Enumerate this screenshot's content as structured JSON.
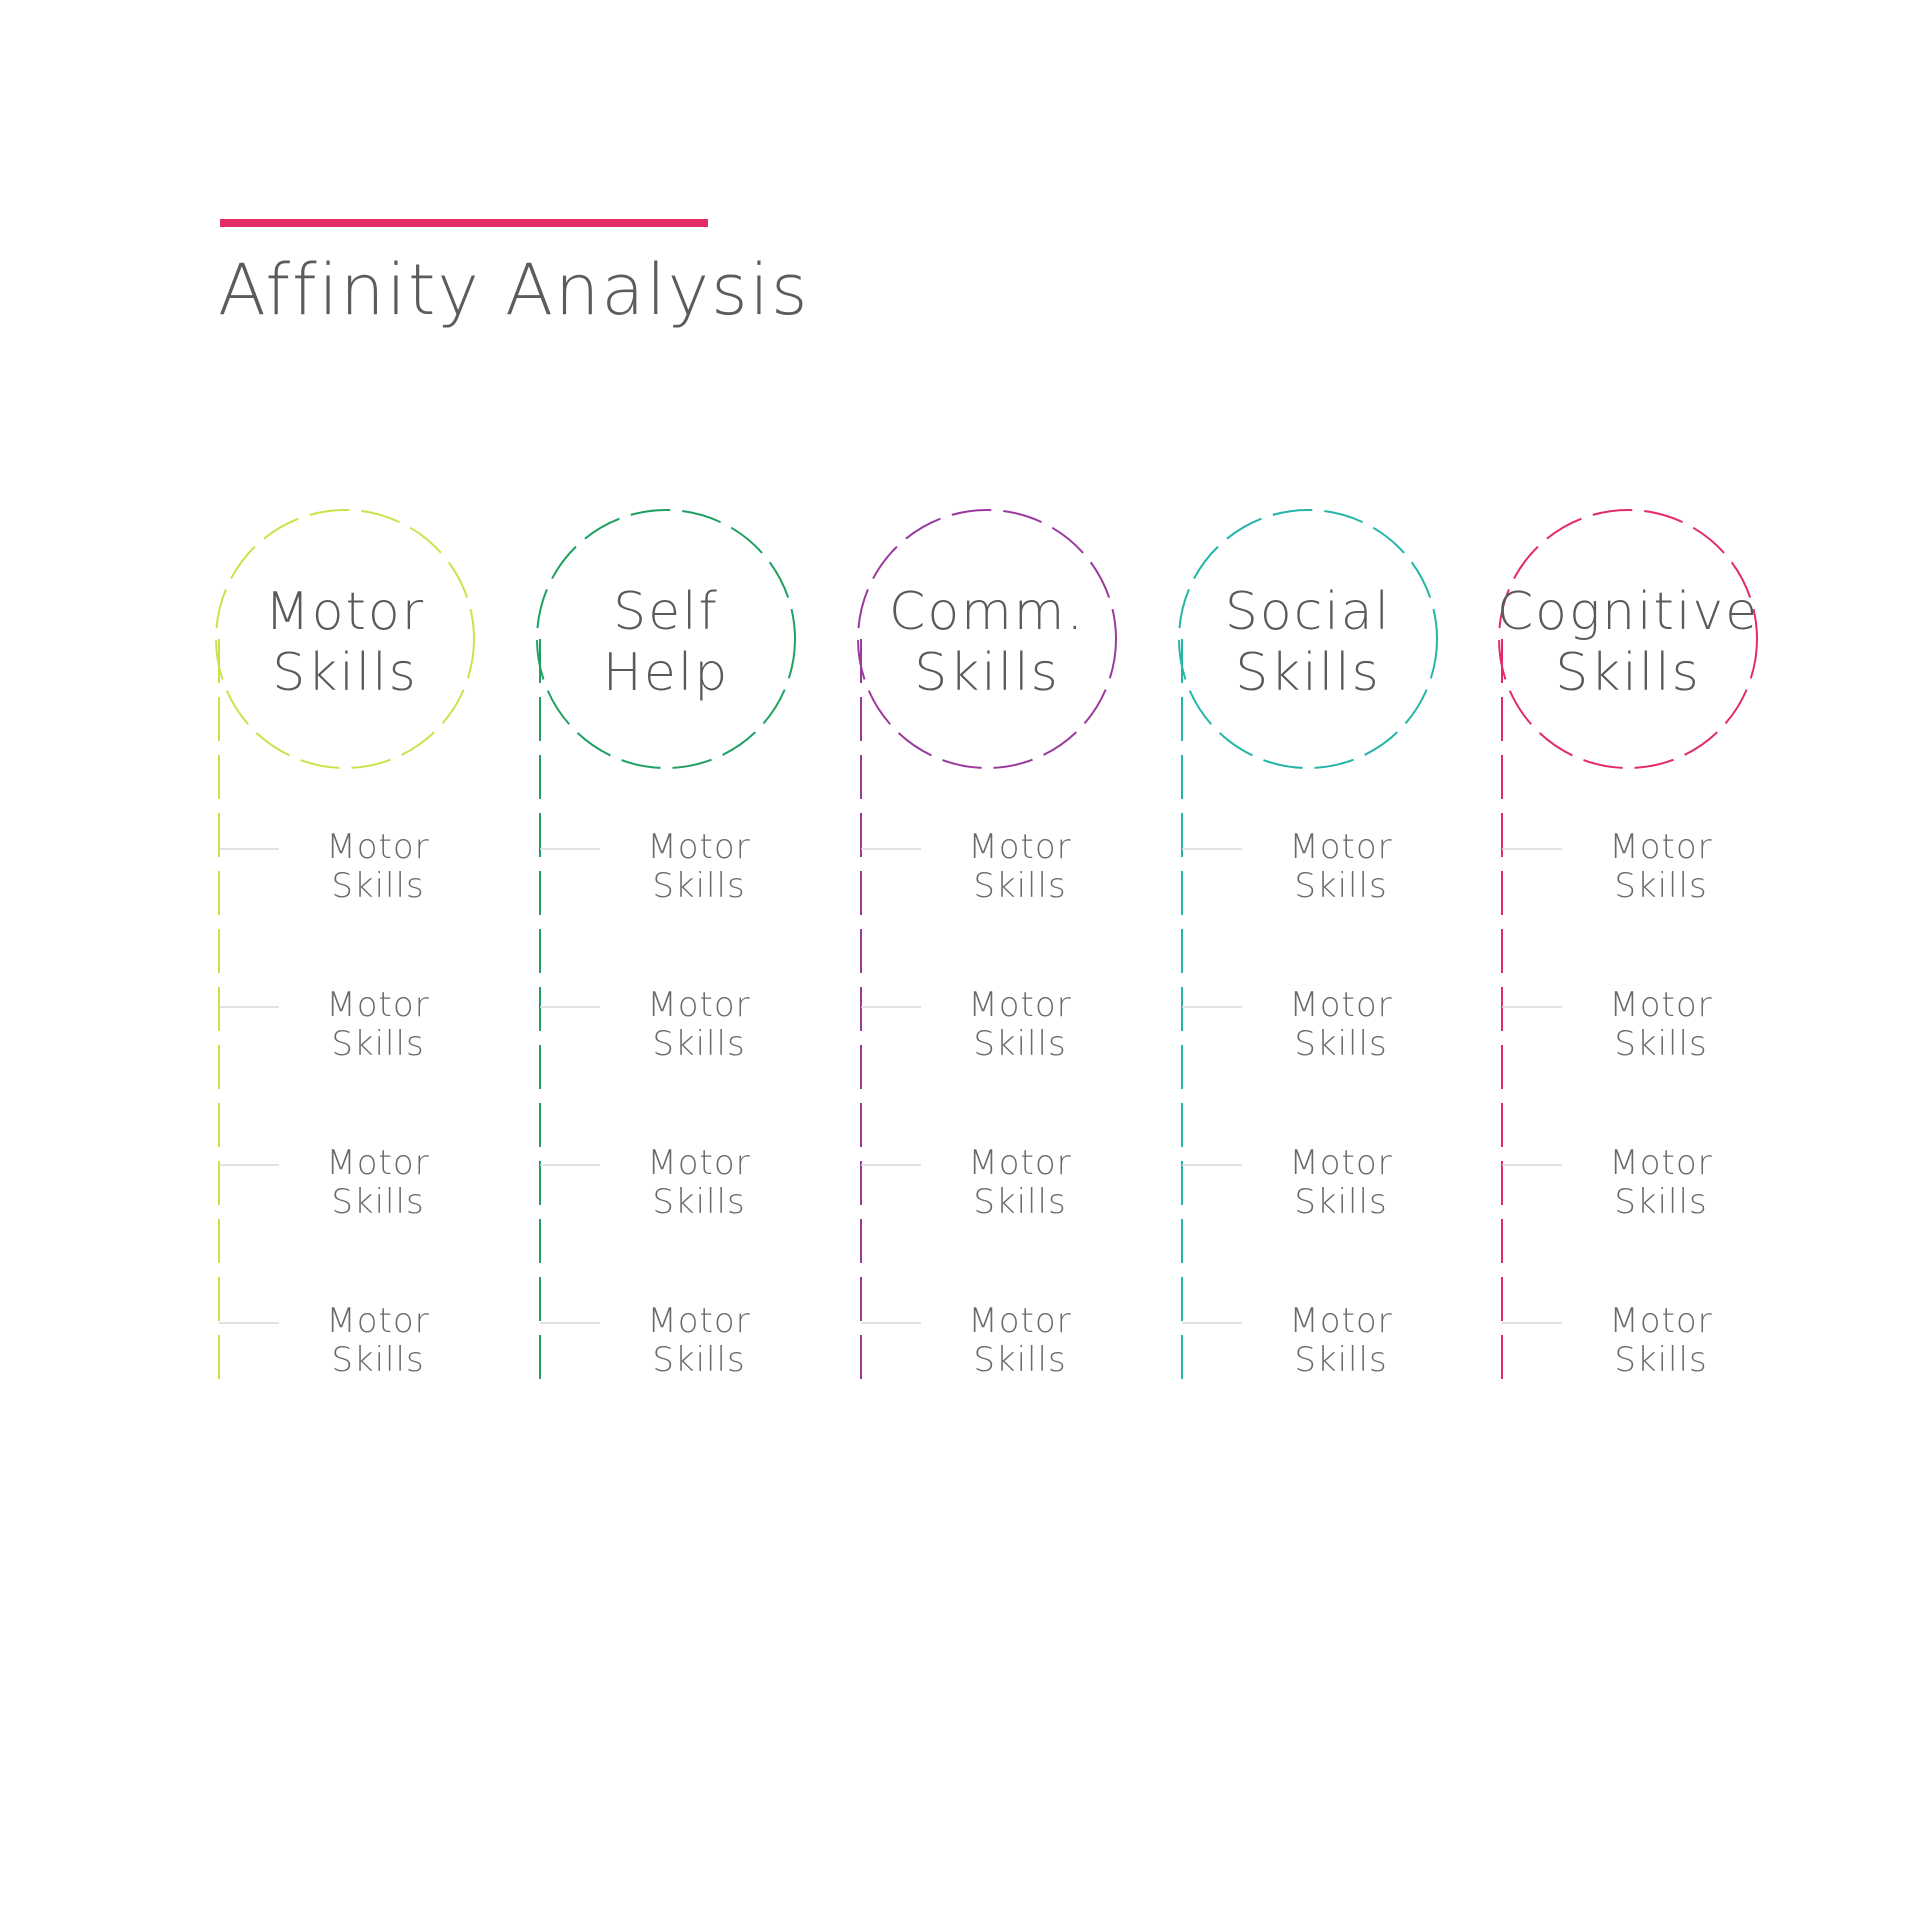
{
  "header": {
    "title": "Affinity Analysis",
    "accent_color": "#e32b66"
  },
  "categories": [
    {
      "title_line1": "Motor",
      "title_line2": "Skills",
      "color": "#cfe04a",
      "items": [
        {
          "line1": "Motor",
          "line2": "Skills"
        },
        {
          "line1": "Motor",
          "line2": "Skills"
        },
        {
          "line1": "Motor",
          "line2": "Skills"
        },
        {
          "line1": "Motor",
          "line2": "Skills"
        }
      ]
    },
    {
      "title_line1": "Self",
      "title_line2": "Help",
      "color": "#1fa062",
      "items": [
        {
          "line1": "Motor",
          "line2": "Skills"
        },
        {
          "line1": "Motor",
          "line2": "Skills"
        },
        {
          "line1": "Motor",
          "line2": "Skills"
        },
        {
          "line1": "Motor",
          "line2": "Skills"
        }
      ]
    },
    {
      "title_line1": "Comm.",
      "title_line2": "Skills",
      "color": "#9a3a9c",
      "items": [
        {
          "line1": "Motor",
          "line2": "Skills"
        },
        {
          "line1": "Motor",
          "line2": "Skills"
        },
        {
          "line1": "Motor",
          "line2": "Skills"
        },
        {
          "line1": "Motor",
          "line2": "Skills"
        }
      ]
    },
    {
      "title_line1": "Social",
      "title_line2": "Skills",
      "color": "#24b5a8",
      "items": [
        {
          "line1": "Motor",
          "line2": "Skills"
        },
        {
          "line1": "Motor",
          "line2": "Skills"
        },
        {
          "line1": "Motor",
          "line2": "Skills"
        },
        {
          "line1": "Motor",
          "line2": "Skills"
        }
      ]
    },
    {
      "title_line1": "Cognitive",
      "title_line2": "Skills",
      "color": "#e32b66",
      "items": [
        {
          "line1": "Motor",
          "line2": "Skills"
        },
        {
          "line1": "Motor",
          "line2": "Skills"
        },
        {
          "line1": "Motor",
          "line2": "Skills"
        },
        {
          "line1": "Motor",
          "line2": "Skills"
        }
      ]
    }
  ]
}
